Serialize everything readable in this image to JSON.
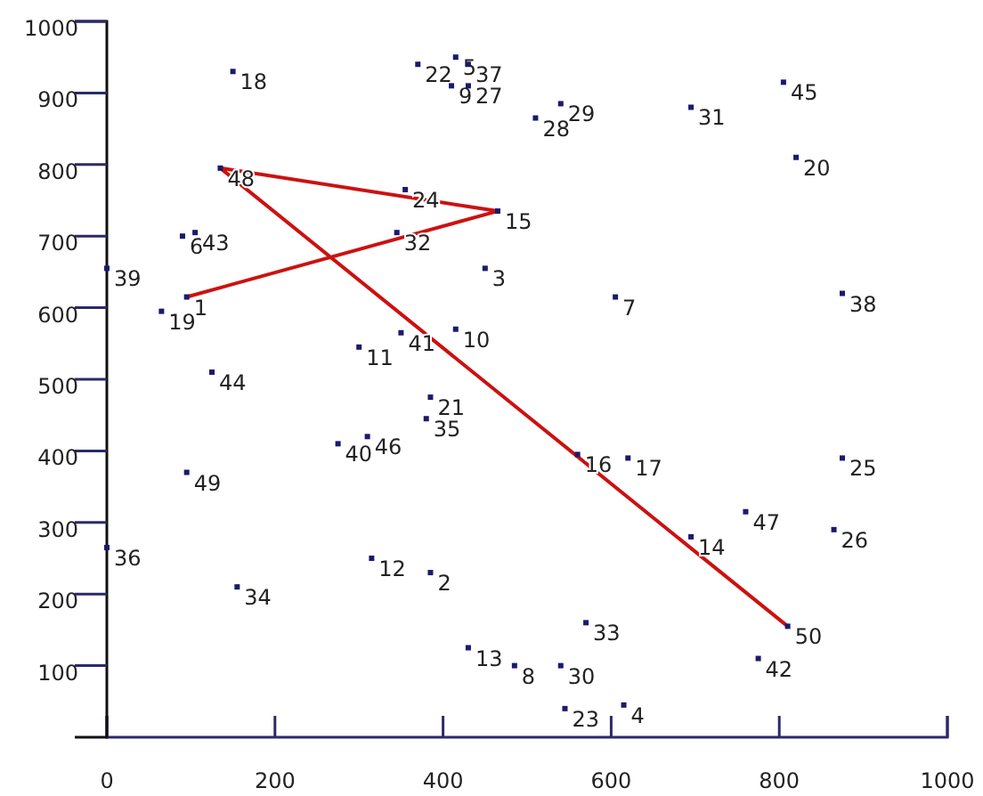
{
  "chart_data": {
    "type": "scatter",
    "xlim": [
      0,
      1000
    ],
    "ylim": [
      0,
      1000
    ],
    "xticks": [
      0,
      200,
      400,
      600,
      800,
      1000
    ],
    "yticks": [
      100,
      200,
      300,
      400,
      500,
      600,
      700,
      800,
      900,
      1000
    ],
    "grid": false,
    "marker": "square",
    "series": [
      {
        "type": "scatter",
        "color": "#1a1a6e",
        "x": [
          95,
          385,
          450,
          615,
          415,
          90,
          605,
          485,
          410,
          415,
          300,
          315,
          430,
          695,
          465,
          560,
          620,
          150,
          65,
          820,
          385,
          370,
          545,
          355,
          875,
          865,
          430,
          510,
          540,
          540,
          695,
          345,
          570,
          155,
          380,
          0,
          430,
          875,
          0,
          275,
          350,
          775,
          105,
          125,
          805,
          310,
          760,
          135,
          95,
          810
        ],
        "values": [
          615,
          230,
          655,
          45,
          950,
          700,
          615,
          100,
          910,
          570,
          545,
          250,
          125,
          280,
          735,
          395,
          390,
          930,
          595,
          810,
          475,
          940,
          40,
          765,
          390,
          290,
          910,
          865,
          885,
          100,
          880,
          705,
          160,
          210,
          445,
          265,
          940,
          620,
          655,
          410,
          565,
          110,
          705,
          510,
          915,
          420,
          315,
          795,
          370,
          155
        ]
      },
      {
        "type": "line",
        "color": "#cc1111",
        "marker": "none",
        "line_style": "solid",
        "x": [
          95,
          465,
          135,
          810
        ],
        "values": [
          615,
          735,
          795,
          155
        ]
      }
    ],
    "annotations": [
      {
        "text": "1",
        "x": 95,
        "y": 615
      },
      {
        "text": "2",
        "x": 385,
        "y": 230
      },
      {
        "text": "3",
        "x": 450,
        "y": 655
      },
      {
        "text": "4",
        "x": 615,
        "y": 45
      },
      {
        "text": "5",
        "x": 415,
        "y": 950
      },
      {
        "text": "6",
        "x": 90,
        "y": 700
      },
      {
        "text": "7",
        "x": 605,
        "y": 615
      },
      {
        "text": "8",
        "x": 485,
        "y": 100
      },
      {
        "text": "9",
        "x": 410,
        "y": 910
      },
      {
        "text": "10",
        "x": 415,
        "y": 570
      },
      {
        "text": "11",
        "x": 300,
        "y": 545
      },
      {
        "text": "12",
        "x": 315,
        "y": 250
      },
      {
        "text": "13",
        "x": 430,
        "y": 125
      },
      {
        "text": "14",
        "x": 695,
        "y": 280
      },
      {
        "text": "15",
        "x": 465,
        "y": 735
      },
      {
        "text": "16",
        "x": 560,
        "y": 395
      },
      {
        "text": "17",
        "x": 620,
        "y": 390
      },
      {
        "text": "18",
        "x": 150,
        "y": 930
      },
      {
        "text": "19",
        "x": 65,
        "y": 595
      },
      {
        "text": "20",
        "x": 820,
        "y": 810
      },
      {
        "text": "21",
        "x": 385,
        "y": 475
      },
      {
        "text": "22",
        "x": 370,
        "y": 940
      },
      {
        "text": "23",
        "x": 545,
        "y": 40
      },
      {
        "text": "24",
        "x": 355,
        "y": 765
      },
      {
        "text": "25",
        "x": 875,
        "y": 390
      },
      {
        "text": "26",
        "x": 865,
        "y": 290
      },
      {
        "text": "27",
        "x": 430,
        "y": 910
      },
      {
        "text": "28",
        "x": 510,
        "y": 865
      },
      {
        "text": "29",
        "x": 540,
        "y": 885
      },
      {
        "text": "30",
        "x": 540,
        "y": 100
      },
      {
        "text": "31",
        "x": 695,
        "y": 880
      },
      {
        "text": "32",
        "x": 345,
        "y": 705
      },
      {
        "text": "33",
        "x": 570,
        "y": 160
      },
      {
        "text": "34",
        "x": 155,
        "y": 210
      },
      {
        "text": "35",
        "x": 380,
        "y": 445
      },
      {
        "text": "36",
        "x": 0,
        "y": 265
      },
      {
        "text": "37",
        "x": 430,
        "y": 940
      },
      {
        "text": "38",
        "x": 875,
        "y": 620
      },
      {
        "text": "39",
        "x": 0,
        "y": 655
      },
      {
        "text": "40",
        "x": 275,
        "y": 410
      },
      {
        "text": "41",
        "x": 350,
        "y": 565
      },
      {
        "text": "42",
        "x": 775,
        "y": 110
      },
      {
        "text": "43",
        "x": 105,
        "y": 705
      },
      {
        "text": "44",
        "x": 125,
        "y": 510
      },
      {
        "text": "45",
        "x": 805,
        "y": 915
      },
      {
        "text": "46",
        "x": 310,
        "y": 420
      },
      {
        "text": "47",
        "x": 760,
        "y": 315
      },
      {
        "text": "48",
        "x": 135,
        "y": 795
      },
      {
        "text": "49",
        "x": 95,
        "y": 370
      },
      {
        "text": "50",
        "x": 810,
        "y": 155
      }
    ]
  }
}
